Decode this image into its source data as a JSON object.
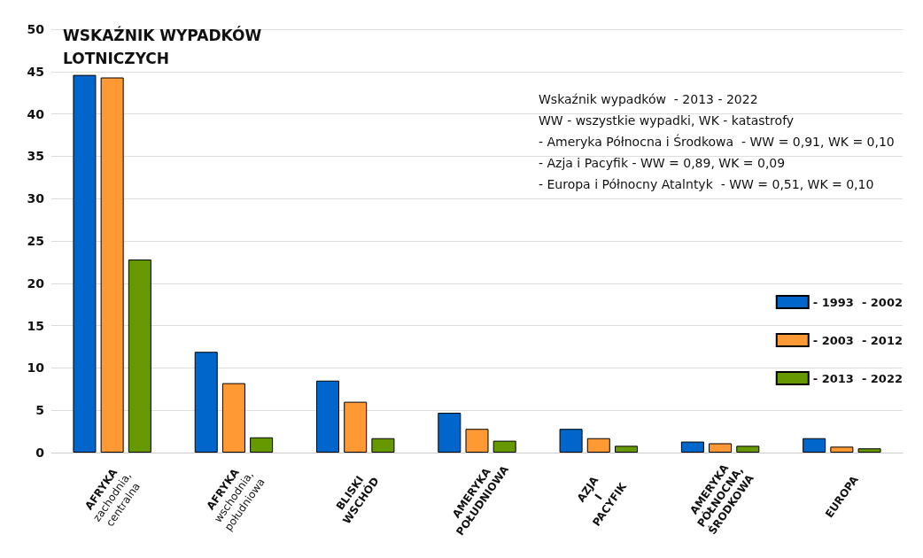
{
  "chart_data": {
    "type": "bar",
    "title": "WSKAŹNIK WYPADKÓW\nLOTNICZYCH",
    "categories": [
      "AFRYKA\nzachodnia,\ncentralna",
      "AFRYKA\nwschodnia,\npołudniowa",
      "BLISKI\nWSCHÓD",
      "AMERYKA\nPOŁUDNIOWA",
      "AZJA\nI\nPACYFIK",
      "AMERYKA\nPÓŁNOCNA,\nŚRODKOWA",
      "EUROPA"
    ],
    "series": [
      {
        "name": "- 1993  - 2002",
        "color": "#0066cc",
        "values": [
          44.6,
          11.9,
          8.5,
          4.7,
          2.8,
          1.3,
          1.7
        ]
      },
      {
        "name": "- 2003  - 2012",
        "color": "#ff9933",
        "values": [
          44.3,
          8.2,
          6.0,
          2.8,
          1.7,
          1.1,
          0.7
        ]
      },
      {
        "name": "- 2013  - 2022",
        "color": "#669900",
        "values": [
          22.8,
          1.8,
          1.7,
          1.4,
          0.8,
          0.8,
          0.5
        ]
      }
    ],
    "ylim": [
      0,
      50
    ],
    "yticks": [
      0,
      5,
      10,
      15,
      20,
      25,
      30,
      35,
      40,
      45,
      50
    ],
    "grid": "y",
    "legend": "right",
    "annotations": [
      "Wskaźnik wypadków  - 2013 - 2022",
      "WW - wszystkie wypadki, WK - katastrofy",
      "- Ameryka Północna i Środkowa  - WW = 0,91, WK = 0,10",
      "- Azja i Pacyfik - WW = 0,89, WK = 0,09",
      "- Europa i Północny Atalntyk  - WW = 0,51, WK = 0,10"
    ]
  }
}
